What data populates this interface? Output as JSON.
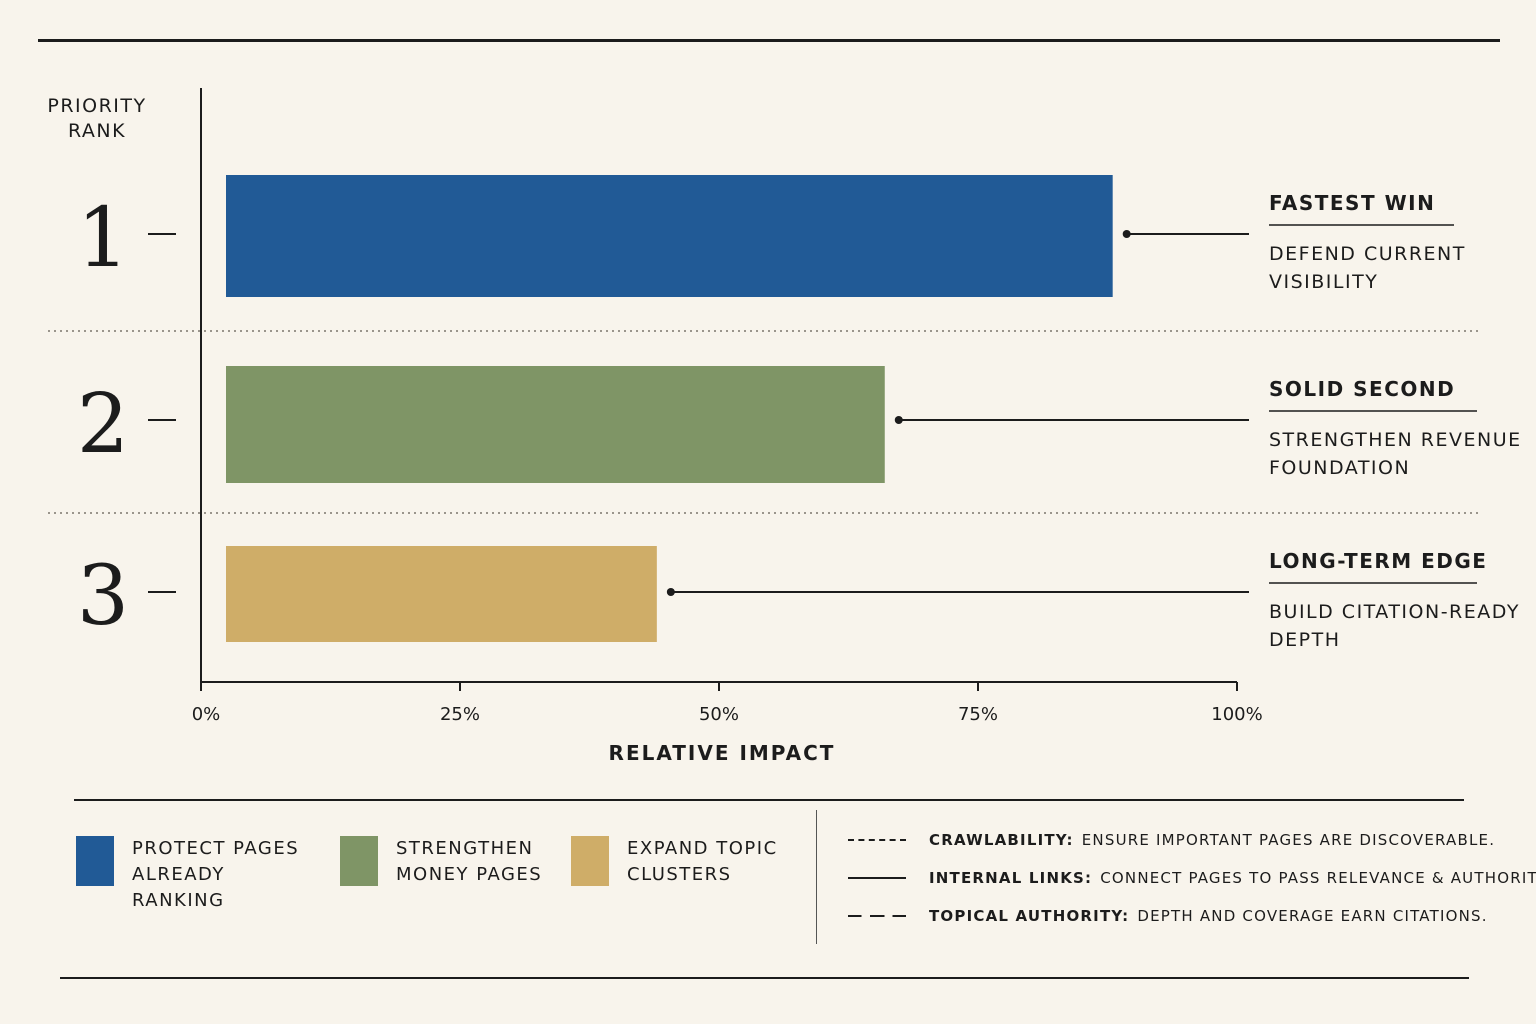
{
  "chart_data": {
    "type": "bar",
    "orientation": "horizontal",
    "y_axis_label": "PRIORITY RANK",
    "xlabel": "RELATIVE IMPACT",
    "xlim": [
      0,
      100
    ],
    "x_ticks": [
      "0%",
      "25%",
      "50%",
      "75%",
      "100%"
    ],
    "categories": [
      "1",
      "2",
      "3"
    ],
    "values": [
      88,
      66,
      44
    ],
    "colors": [
      "#215a96",
      "#7f9566",
      "#cfad68"
    ],
    "annotations": [
      {
        "title": "FASTEST WIN",
        "text": "DEFEND CURRENT VISIBILITY",
        "lines": [
          "DEFEND CURRENT",
          "VISIBILITY"
        ]
      },
      {
        "title": "SOLID SECOND",
        "text": "STRENGTHEN REVENUE FOUNDATION",
        "lines": [
          "STRENGTHEN REVENUE",
          "FOUNDATION"
        ]
      },
      {
        "title": "LONG-TERM EDGE",
        "text": "BUILD CITATION-READY DEPTH",
        "lines": [
          "BUILD CITATION-READY",
          "DEPTH"
        ]
      }
    ],
    "grid": false,
    "legend_placement": "bottom"
  },
  "legend": [
    {
      "label": "PROTECT PAGES ALREADY RANKING",
      "color": "#215a96"
    },
    {
      "label": "STRENGTHEN MONEY PAGES",
      "color": "#7f9566"
    },
    {
      "label": "EXPAND TOPIC CLUSTERS",
      "color": "#cfad68"
    }
  ],
  "notes": [
    {
      "line_style": "dotted",
      "term": "CRAWLABILITY:",
      "text": "ENSURE IMPORTANT PAGES ARE DISCOVERABLE."
    },
    {
      "line_style": "solid",
      "term": "INTERNAL LINKS:",
      "text": "CONNECT PAGES TO PASS RELEVANCE & AUTHORITY."
    },
    {
      "line_style": "dashed",
      "term": "TOPICAL AUTHORITY:",
      "text": "DEPTH AND COVERAGE EARN CITATIONS."
    }
  ]
}
